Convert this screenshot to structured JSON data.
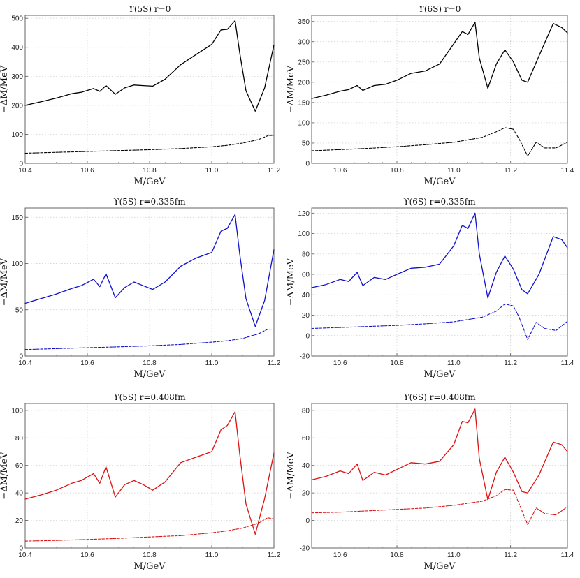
{
  "chart_data": [
    {
      "type": "line",
      "title": "ϒ(5S)  r=0",
      "xlabel": "M/GeV",
      "ylabel": "−ΔM/MeV",
      "xlim": [
        10.4,
        11.2
      ],
      "ylim": [
        0,
        510
      ],
      "xticks": [
        10.4,
        10.6,
        10.8,
        11.0,
        11.2
      ],
      "yticks": [
        0,
        100,
        200,
        300,
        400,
        500
      ],
      "color": "#000000",
      "series": [
        {
          "style": "solid",
          "x": [
            10.4,
            10.45,
            10.5,
            10.55,
            10.58,
            10.62,
            10.64,
            10.66,
            10.69,
            10.72,
            10.75,
            10.78,
            10.81,
            10.85,
            10.9,
            10.95,
            11.0,
            11.03,
            11.05,
            11.075,
            11.09,
            11.11,
            11.14,
            11.17,
            11.2
          ],
          "y": [
            200,
            212,
            225,
            240,
            245,
            258,
            248,
            268,
            238,
            260,
            270,
            268,
            266,
            290,
            340,
            375,
            410,
            460,
            462,
            492,
            380,
            250,
            180,
            260,
            408
          ]
        },
        {
          "style": "dashed",
          "x": [
            10.4,
            10.5,
            10.6,
            10.7,
            10.8,
            10.9,
            11.0,
            11.05,
            11.1,
            11.15,
            11.18,
            11.2
          ],
          "y": [
            35,
            38,
            41,
            44,
            47,
            51,
            57,
            62,
            70,
            82,
            95,
            97
          ]
        }
      ]
    },
    {
      "type": "line",
      "title": "ϒ(6S)  r=0",
      "xlabel": "M/GeV",
      "ylabel": "−ΔM/MeV",
      "xlim": [
        10.5,
        11.4
      ],
      "ylim": [
        0,
        365
      ],
      "xticks": [
        10.6,
        10.8,
        11.0,
        11.2,
        11.4
      ],
      "yticks": [
        0,
        50,
        100,
        150,
        200,
        250,
        300,
        350
      ],
      "color": "#000000",
      "series": [
        {
          "style": "solid",
          "x": [
            10.5,
            10.55,
            10.6,
            10.63,
            10.66,
            10.68,
            10.72,
            10.76,
            10.8,
            10.85,
            10.9,
            10.95,
            11.0,
            11.03,
            11.05,
            11.075,
            11.09,
            11.12,
            11.15,
            11.18,
            11.21,
            11.24,
            11.26,
            11.3,
            11.35,
            11.38,
            11.4
          ],
          "y": [
            160,
            168,
            178,
            182,
            192,
            180,
            192,
            195,
            205,
            222,
            228,
            245,
            295,
            325,
            318,
            348,
            260,
            185,
            245,
            280,
            250,
            205,
            200,
            265,
            345,
            335,
            322
          ]
        },
        {
          "style": "dashed",
          "x": [
            10.5,
            10.6,
            10.7,
            10.8,
            10.9,
            11.0,
            11.1,
            11.15,
            11.18,
            11.21,
            11.23,
            11.26,
            11.29,
            11.32,
            11.36,
            11.4
          ],
          "y": [
            31,
            34,
            37,
            41,
            46,
            52,
            64,
            78,
            88,
            84,
            60,
            18,
            52,
            38,
            38,
            52
          ]
        }
      ]
    },
    {
      "type": "line",
      "title": "ϒ(5S)  r=0.335fm",
      "xlabel": "M/GeV",
      "ylabel": "−ΔM/MeV",
      "xlim": [
        10.4,
        11.2
      ],
      "ylim": [
        0,
        160
      ],
      "xticks": [
        10.4,
        10.6,
        10.8,
        11.0,
        11.2
      ],
      "yticks": [
        0,
        50,
        100,
        150
      ],
      "color": "#1111cc",
      "series": [
        {
          "style": "solid",
          "x": [
            10.4,
            10.45,
            10.5,
            10.55,
            10.58,
            10.62,
            10.64,
            10.66,
            10.69,
            10.72,
            10.75,
            10.78,
            10.81,
            10.85,
            10.9,
            10.95,
            11.0,
            11.03,
            11.05,
            11.075,
            11.09,
            11.11,
            11.14,
            11.17,
            11.2
          ],
          "y": [
            57,
            62,
            67,
            73,
            76,
            83,
            75,
            89,
            63,
            74,
            80,
            76,
            72,
            80,
            97,
            106,
            112,
            135,
            138,
            153,
            110,
            62,
            32,
            60,
            115
          ]
        },
        {
          "style": "dashed",
          "x": [
            10.4,
            10.5,
            10.6,
            10.7,
            10.8,
            10.9,
            11.0,
            11.05,
            11.1,
            11.15,
            11.18,
            11.2
          ],
          "y": [
            7,
            8,
            9,
            10,
            11,
            12.5,
            15,
            16.5,
            19,
            24,
            29,
            29
          ]
        }
      ]
    },
    {
      "type": "line",
      "title": "ϒ(6S)  r=0.335fm",
      "xlabel": "M/GeV",
      "ylabel": "−ΔM/MeV",
      "xlim": [
        10.5,
        11.4
      ],
      "ylim": [
        -20,
        125
      ],
      "xticks": [
        10.6,
        10.8,
        11.0,
        11.2,
        11.4
      ],
      "yticks": [
        -20,
        0,
        20,
        40,
        60,
        80,
        100,
        120
      ],
      "color": "#1111cc",
      "series": [
        {
          "style": "solid",
          "x": [
            10.5,
            10.55,
            10.6,
            10.63,
            10.66,
            10.68,
            10.72,
            10.76,
            10.8,
            10.85,
            10.9,
            10.95,
            11.0,
            11.03,
            11.05,
            11.075,
            11.09,
            11.12,
            11.15,
            11.18,
            11.21,
            11.24,
            11.26,
            11.3,
            11.35,
            11.38,
            11.4
          ],
          "y": [
            47,
            50,
            55,
            53,
            62,
            49,
            57,
            55,
            60,
            66,
            67,
            70,
            88,
            108,
            105,
            120,
            80,
            37,
            62,
            78,
            65,
            45,
            41,
            60,
            97,
            94,
            86
          ]
        },
        {
          "style": "dashed",
          "x": [
            10.5,
            10.6,
            10.7,
            10.8,
            10.9,
            11.0,
            11.1,
            11.15,
            11.18,
            11.21,
            11.23,
            11.26,
            11.29,
            11.32,
            11.36,
            11.4
          ],
          "y": [
            7,
            8,
            9,
            10,
            11.5,
            13.5,
            18,
            24,
            31,
            29,
            18,
            -4,
            13,
            7,
            5,
            14
          ]
        }
      ]
    },
    {
      "type": "line",
      "title": "ϒ(5S)  r=0.408fm",
      "xlabel": "M/GeV",
      "ylabel": "−ΔM/MeV",
      "xlim": [
        10.4,
        11.2
      ],
      "ylim": [
        0,
        105
      ],
      "xticks": [
        10.4,
        10.6,
        10.8,
        11.0,
        11.2
      ],
      "yticks": [
        0,
        20,
        40,
        60,
        80,
        100
      ],
      "color": "#dd1111",
      "series": [
        {
          "style": "solid",
          "x": [
            10.4,
            10.45,
            10.5,
            10.55,
            10.58,
            10.62,
            10.64,
            10.66,
            10.69,
            10.72,
            10.75,
            10.78,
            10.81,
            10.85,
            10.9,
            10.95,
            11.0,
            11.03,
            11.05,
            11.075,
            11.09,
            11.11,
            11.14,
            11.17,
            11.2
          ],
          "y": [
            35.5,
            38.5,
            42,
            47,
            49,
            54,
            47,
            59,
            37,
            46,
            49,
            46,
            42,
            48,
            62,
            66,
            70,
            86,
            89,
            99,
            68,
            32,
            10,
            36,
            69
          ]
        },
        {
          "style": "dashed",
          "x": [
            10.4,
            10.5,
            10.6,
            10.7,
            10.8,
            10.9,
            11.0,
            11.05,
            11.1,
            11.15,
            11.18,
            11.2
          ],
          "y": [
            5,
            5.5,
            6.2,
            7,
            8,
            9,
            11,
            12.5,
            14.5,
            18,
            22,
            21
          ]
        }
      ]
    },
    {
      "type": "line",
      "title": "ϒ(6S)  r=0.408fm",
      "xlabel": "M/GeV",
      "ylabel": "−ΔM/MeV",
      "xlim": [
        10.5,
        11.4
      ],
      "ylim": [
        -20,
        85
      ],
      "xticks": [
        10.6,
        10.8,
        11.0,
        11.2,
        11.4
      ],
      "yticks": [
        -20,
        0,
        20,
        40,
        60,
        80
      ],
      "color": "#dd1111",
      "series": [
        {
          "style": "solid",
          "x": [
            10.5,
            10.55,
            10.6,
            10.63,
            10.66,
            10.68,
            10.72,
            10.76,
            10.8,
            10.85,
            10.9,
            10.95,
            11.0,
            11.03,
            11.05,
            11.075,
            11.09,
            11.12,
            11.15,
            11.18,
            11.21,
            11.24,
            11.26,
            11.3,
            11.35,
            11.38,
            11.4
          ],
          "y": [
            29.5,
            32,
            36,
            34,
            41,
            29,
            35,
            33,
            37,
            42,
            41,
            43,
            55,
            72,
            71,
            81,
            45,
            15,
            35,
            46,
            35,
            21,
            20,
            33,
            57,
            55,
            50
          ]
        },
        {
          "style": "dashed",
          "x": [
            10.5,
            10.6,
            10.7,
            10.8,
            10.9,
            11.0,
            11.1,
            11.15,
            11.18,
            11.21,
            11.23,
            11.26,
            11.29,
            11.32,
            11.36,
            11.4
          ],
          "y": [
            5.5,
            6,
            7,
            8,
            9,
            11,
            14,
            18,
            22.5,
            22,
            12,
            -3,
            9,
            5,
            4,
            10
          ]
        }
      ]
    }
  ]
}
